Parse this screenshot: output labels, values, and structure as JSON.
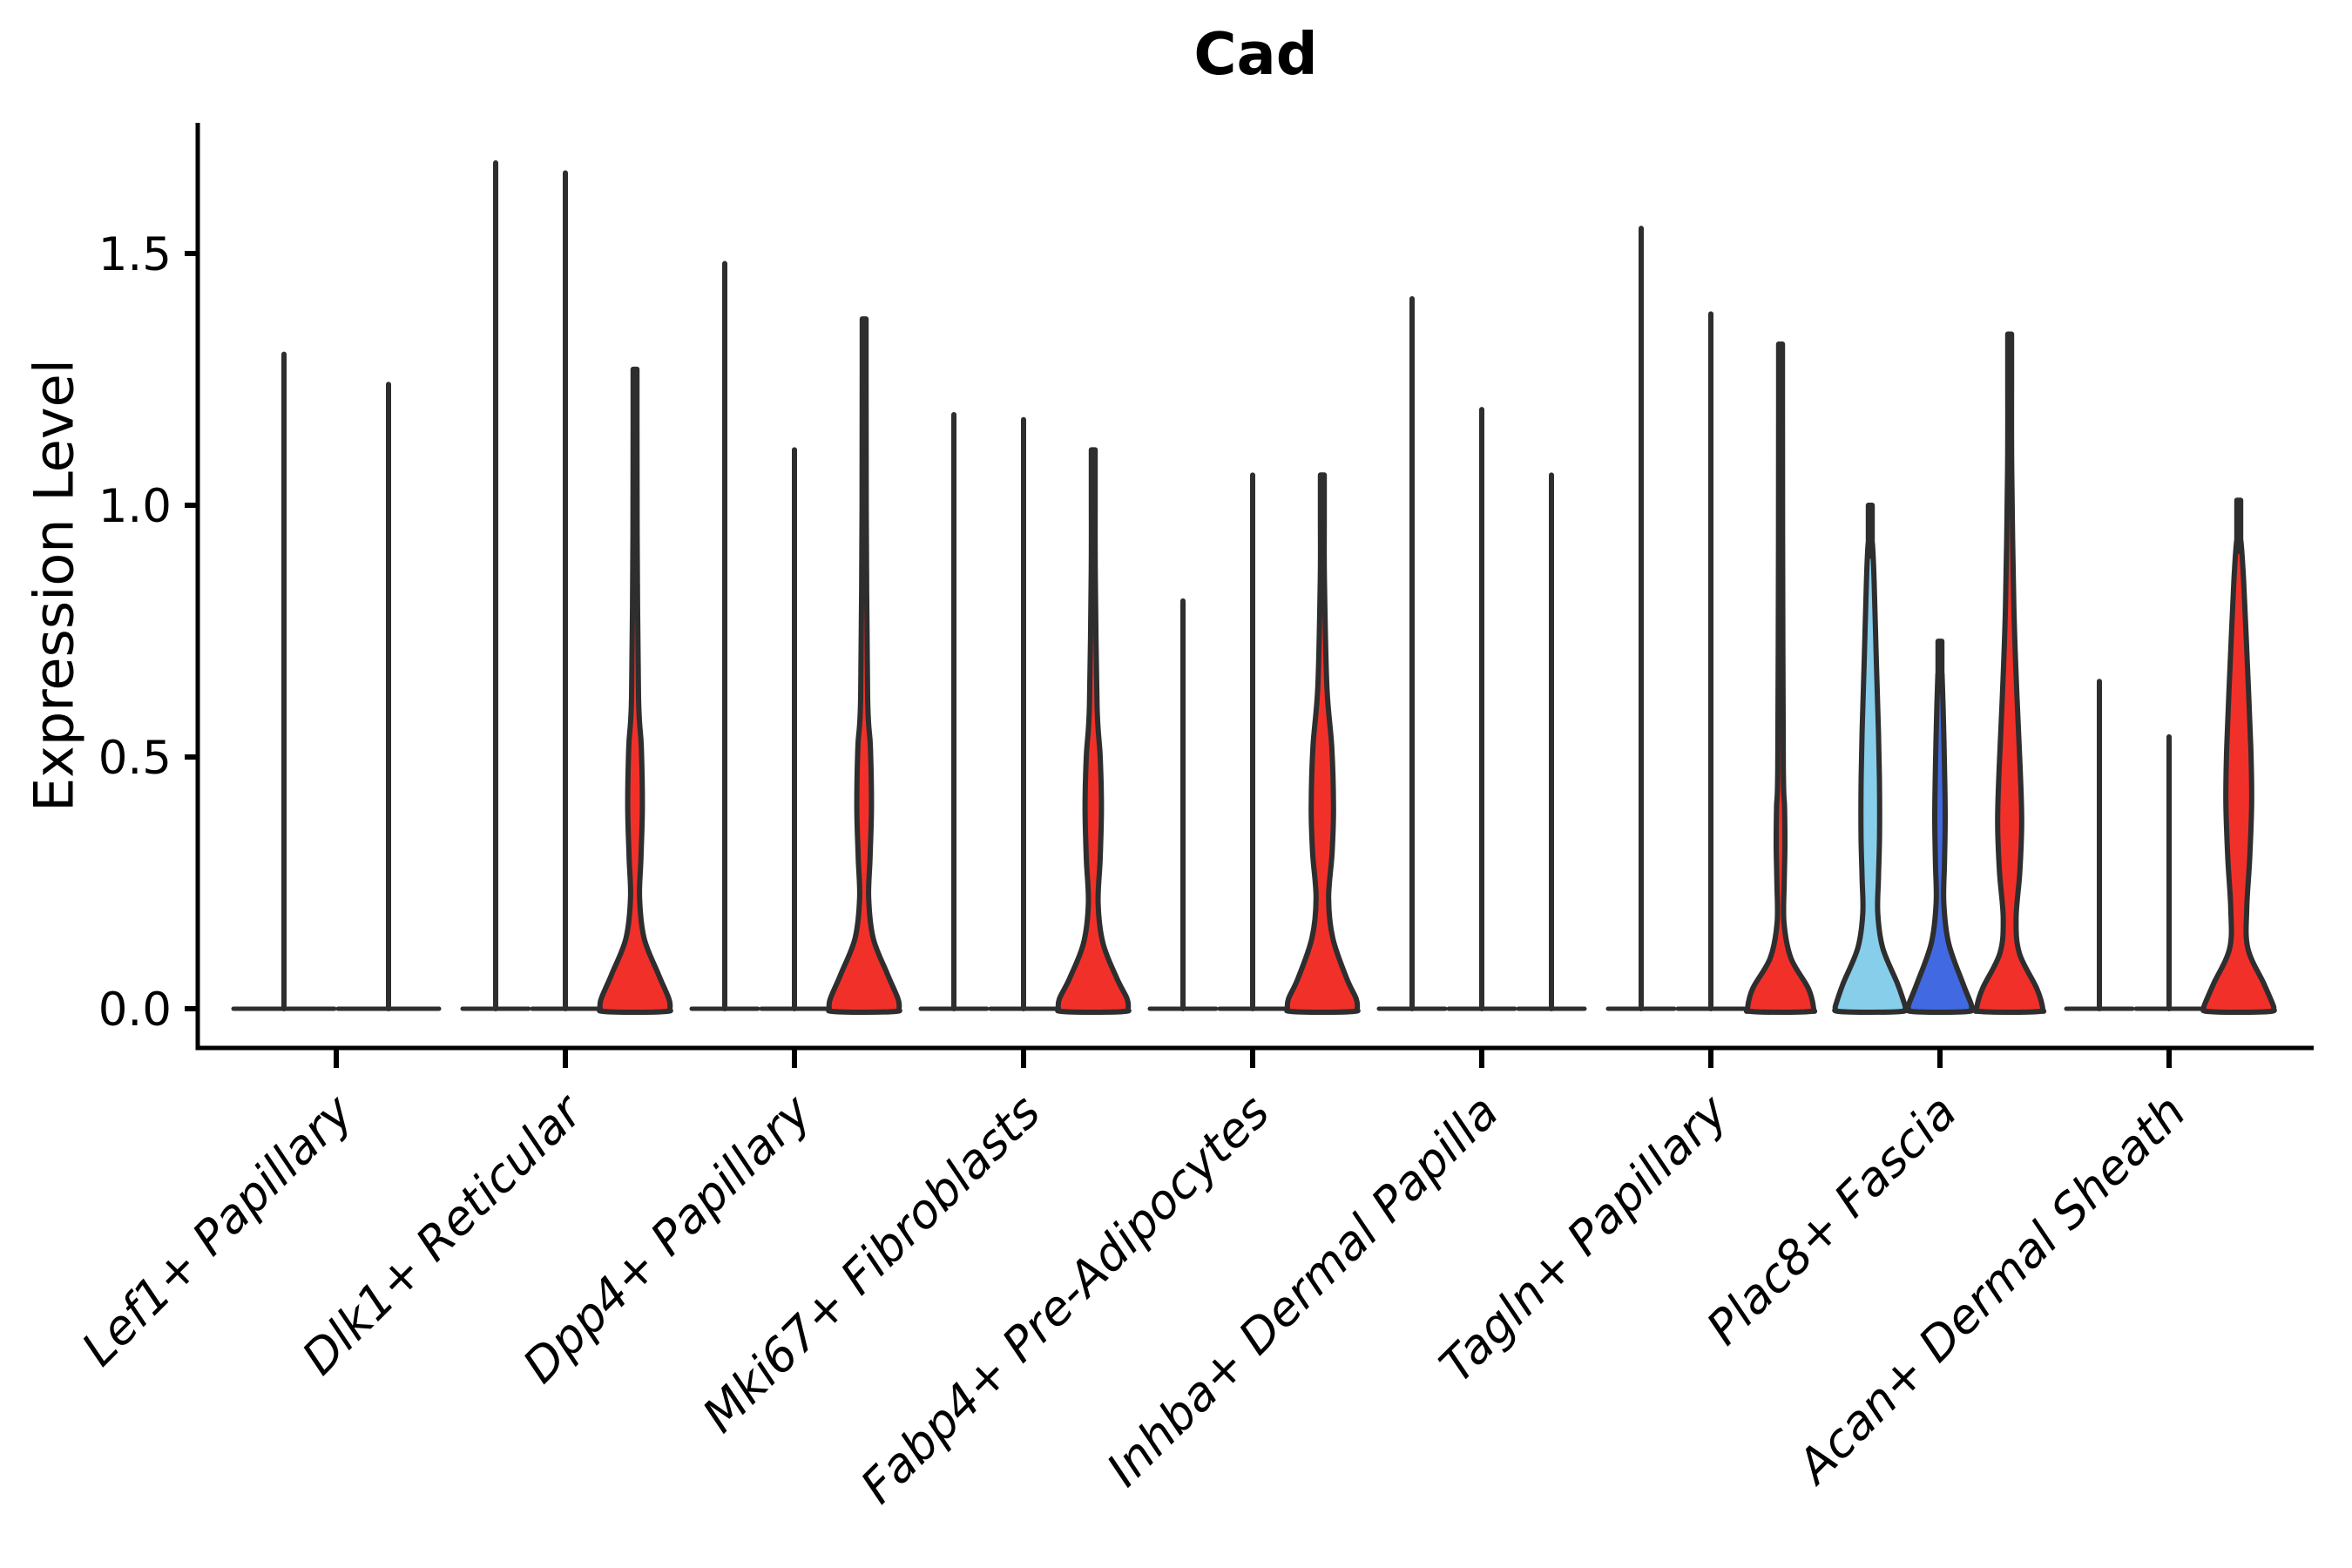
{
  "chart_data": {
    "type": "violin",
    "title": "Cad",
    "ylabel": "Expression Level",
    "xlabel": "",
    "ylim": [
      -0.08,
      1.76
    ],
    "yticks": [
      0.0,
      0.5,
      1.0,
      1.5
    ],
    "ytick_labels": [
      "0.0",
      "0.5",
      "1.0",
      "1.5"
    ],
    "grid": false,
    "legend": false,
    "categories": [
      "Lef1+ Papillary",
      "Dlk1+ Reticular",
      "Dpp4+ Papillary",
      "Mki67+ Fibroblasts",
      "Fabp4+ Pre-Adipocytes",
      "Inhba+ Dermal Papilla",
      "Tagln+ Papillary",
      "Plac8+ Fascia",
      "Acan+ Dermal Sheath"
    ],
    "colors": {
      "red": "#F2302A",
      "light_blue": "#87CEEB",
      "dark_blue": "#4169E1",
      "outline": "#2E2E2E",
      "axis": "#000000",
      "background": "#FFFFFF"
    },
    "profiles": {
      "pA": [
        [
          0.62,
          0.1
        ],
        [
          0.52,
          0.18
        ],
        [
          0.4,
          0.21
        ],
        [
          0.3,
          0.17
        ],
        [
          0.22,
          0.13
        ],
        [
          0.14,
          0.26
        ],
        [
          0.07,
          0.66
        ],
        [
          0.02,
          0.97
        ],
        [
          0,
          1.0
        ]
      ],
      "pB": [
        [
          0.6,
          0.11
        ],
        [
          0.5,
          0.2
        ],
        [
          0.4,
          0.235
        ],
        [
          0.3,
          0.2
        ],
        [
          0.21,
          0.14
        ],
        [
          0.13,
          0.28
        ],
        [
          0.06,
          0.68
        ],
        [
          0.02,
          0.97
        ],
        [
          0,
          1.0
        ]
      ],
      "pC": [
        [
          0.64,
          0.13
        ],
        [
          0.52,
          0.27
        ],
        [
          0.4,
          0.32
        ],
        [
          0.31,
          0.28
        ],
        [
          0.22,
          0.18
        ],
        [
          0.14,
          0.3
        ],
        [
          0.06,
          0.7
        ],
        [
          0.02,
          0.97
        ],
        [
          0,
          1.0
        ]
      ],
      "pD": [
        [
          0.48,
          0.08
        ],
        [
          0.4,
          0.115
        ],
        [
          0.32,
          0.125
        ],
        [
          0.25,
          0.105
        ],
        [
          0.17,
          0.1
        ],
        [
          0.1,
          0.3
        ],
        [
          0.04,
          0.8
        ],
        [
          0,
          0.95
        ]
      ],
      "pE": [
        [
          0.85,
          0.11
        ],
        [
          0.7,
          0.17
        ],
        [
          0.55,
          0.235
        ],
        [
          0.44,
          0.265
        ],
        [
          0.34,
          0.265
        ],
        [
          0.26,
          0.235
        ],
        [
          0.19,
          0.215
        ],
        [
          0.12,
          0.36
        ],
        [
          0.05,
          0.78
        ],
        [
          0.01,
          0.98
        ],
        [
          0,
          1.0
        ]
      ],
      "pF": [
        [
          0.6,
          0.09
        ],
        [
          0.48,
          0.13
        ],
        [
          0.38,
          0.15
        ],
        [
          0.29,
          0.13
        ],
        [
          0.21,
          0.11
        ],
        [
          0.13,
          0.25
        ],
        [
          0.05,
          0.66
        ],
        [
          0.01,
          0.89
        ],
        [
          0,
          0.9
        ]
      ],
      "pG": [
        [
          0.8,
          0.12
        ],
        [
          0.62,
          0.21
        ],
        [
          0.48,
          0.3
        ],
        [
          0.37,
          0.345
        ],
        [
          0.27,
          0.29
        ],
        [
          0.18,
          0.185
        ],
        [
          0.11,
          0.28
        ],
        [
          0.04,
          0.78
        ],
        [
          0,
          0.95
        ]
      ],
      "pH": [
        [
          0.85,
          0.14
        ],
        [
          0.68,
          0.25
        ],
        [
          0.52,
          0.345
        ],
        [
          0.41,
          0.37
        ],
        [
          0.3,
          0.315
        ],
        [
          0.2,
          0.23
        ],
        [
          0.12,
          0.26
        ],
        [
          0.05,
          0.72
        ],
        [
          0.01,
          0.97
        ],
        [
          0,
          1.0
        ]
      ]
    },
    "groups": [
      {
        "category": "Lef1+ Papillary",
        "slot_half_width": 60,
        "violins": [
          {
            "offset": -60,
            "style": "line",
            "max": 1.3
          },
          {
            "offset": 60,
            "style": "line",
            "max": 1.24
          }
        ]
      },
      {
        "category": "Dlk1+ Reticular",
        "slot_half_width": 40,
        "violins": [
          {
            "offset": -80,
            "style": "line",
            "max": 1.68
          },
          {
            "offset": 0,
            "style": "line",
            "max": 1.66
          },
          {
            "offset": 80,
            "style": "filled",
            "fill": "red",
            "max": 1.27,
            "profile": "pA"
          }
        ]
      },
      {
        "category": "Dpp4+ Papillary",
        "slot_half_width": 40,
        "violins": [
          {
            "offset": -80,
            "style": "line",
            "max": 1.48
          },
          {
            "offset": 0,
            "style": "line",
            "max": 1.11
          },
          {
            "offset": 80,
            "style": "filled",
            "fill": "red",
            "max": 1.37,
            "profile": "pA"
          }
        ]
      },
      {
        "category": "Mki67+ Fibroblasts",
        "slot_half_width": 40,
        "violins": [
          {
            "offset": -80,
            "style": "line",
            "max": 1.18
          },
          {
            "offset": 0,
            "style": "line",
            "max": 1.17
          },
          {
            "offset": 80,
            "style": "filled",
            "fill": "red",
            "max": 1.11,
            "profile": "pB"
          }
        ]
      },
      {
        "category": "Fabp4+ Pre-Adipocytes",
        "slot_half_width": 40,
        "violins": [
          {
            "offset": -80,
            "style": "line",
            "max": 0.81
          },
          {
            "offset": 0,
            "style": "line",
            "max": 1.06
          },
          {
            "offset": 80,
            "style": "filled",
            "fill": "red",
            "max": 1.06,
            "profile": "pC"
          }
        ]
      },
      {
        "category": "Inhba+ Dermal Papilla",
        "slot_half_width": 40,
        "violins": [
          {
            "offset": -80,
            "style": "line",
            "max": 1.41
          },
          {
            "offset": 0,
            "style": "line",
            "max": 1.19
          },
          {
            "offset": 80,
            "style": "line",
            "max": 1.06
          }
        ]
      },
      {
        "category": "Tagln+ Papillary",
        "slot_half_width": 40,
        "violins": [
          {
            "offset": -80,
            "style": "line",
            "max": 1.55
          },
          {
            "offset": 0,
            "style": "line",
            "max": 1.38
          },
          {
            "offset": 80,
            "style": "filled",
            "fill": "red",
            "max": 1.32,
            "profile": "pD"
          }
        ]
      },
      {
        "category": "Plac8+ Fascia",
        "slot_half_width": 40,
        "violins": [
          {
            "offset": -80,
            "style": "filled",
            "fill": "light_blue",
            "max": 1.0,
            "profile": "pE"
          },
          {
            "offset": 0,
            "style": "filled",
            "fill": "dark_blue",
            "max": 0.73,
            "profile": "pF"
          },
          {
            "offset": 80,
            "style": "filled",
            "fill": "red",
            "max": 1.34,
            "profile": "pG"
          }
        ]
      },
      {
        "category": "Acan+ Dermal Sheath",
        "slot_half_width": 40,
        "violins": [
          {
            "offset": -80,
            "style": "line",
            "max": 0.65
          },
          {
            "offset": 0,
            "style": "line",
            "max": 0.54
          },
          {
            "offset": 80,
            "style": "filled",
            "fill": "red",
            "max": 1.01,
            "profile": "pH"
          }
        ]
      }
    ]
  }
}
